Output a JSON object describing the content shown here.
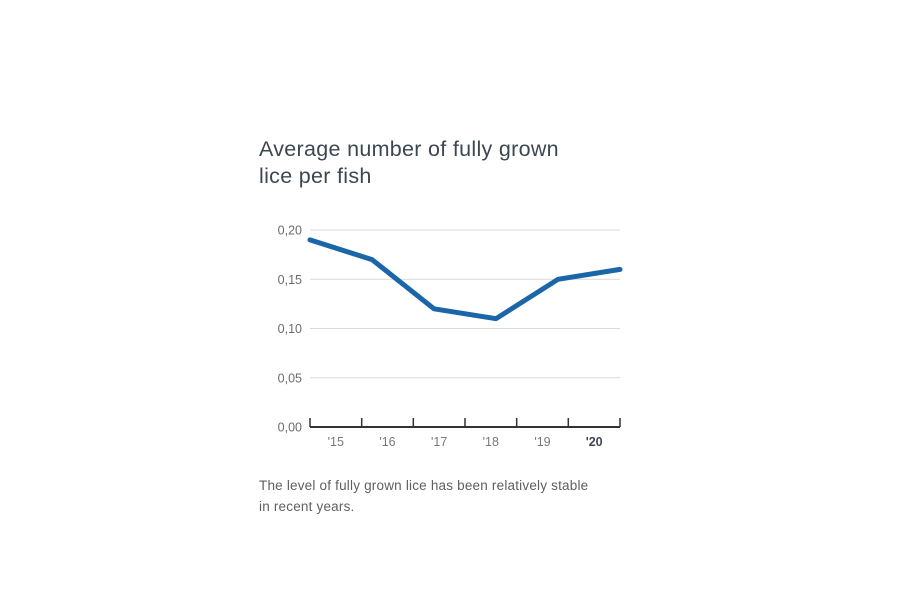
{
  "page": {
    "background_color": "#ffffff"
  },
  "title_lines": [
    "Average number of fully grown",
    "lice per fish"
  ],
  "caption_lines": [
    "The level of fully grown lice has been relatively stable",
    "in recent years."
  ],
  "chart_data": {
    "type": "line",
    "title": "Average number of fully grown lice per fish",
    "categories": [
      "'15",
      "'16",
      "'17",
      "'18",
      "'19",
      "'20"
    ],
    "values": [
      0.19,
      0.17,
      0.12,
      0.11,
      0.15,
      0.16
    ],
    "ylim": [
      0,
      0.2
    ],
    "ytick_values": [
      0,
      0.05,
      0.1,
      0.15,
      0.2
    ],
    "ytick_labels": [
      "0,00",
      "0,05",
      "0,10",
      "0,15",
      "0,20"
    ],
    "bold_last_category": true,
    "grid": true,
    "legend": "none",
    "annotation": "The level of fully grown lice has been relatively stable in recent years.",
    "colors": {
      "line": "#1a66a8",
      "grid": "#d9d9d9",
      "axis": "#333333",
      "ytick_text": "#6b6b6b",
      "xtick_text": "#787878",
      "xtick_bold_text": "#3d4751",
      "title_text": "#3d4751",
      "caption_text": "#5f5f5f"
    }
  }
}
